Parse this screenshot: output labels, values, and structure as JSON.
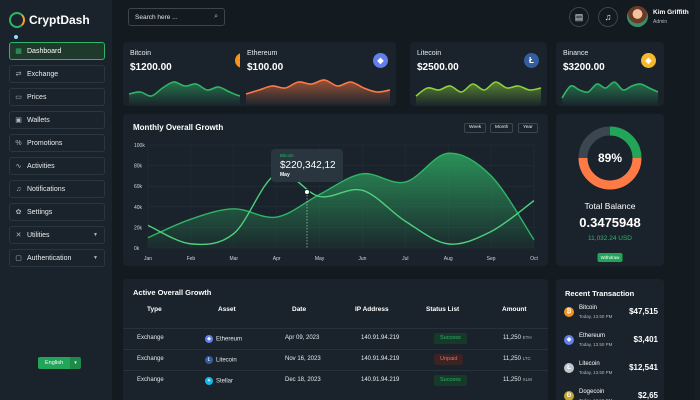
{
  "brand": {
    "name": "CryptDash"
  },
  "sidebar": {
    "items": [
      {
        "label": "Dashboard",
        "icon": "grid-icon",
        "active": true,
        "caret": false
      },
      {
        "label": "Exchange",
        "icon": "exchange-icon",
        "active": false,
        "caret": false
      },
      {
        "label": "Prices",
        "icon": "money-icon",
        "active": false,
        "caret": false
      },
      {
        "label": "Wallets",
        "icon": "wallet-icon",
        "active": false,
        "caret": false
      },
      {
        "label": "Promotions",
        "icon": "percent-icon",
        "active": false,
        "caret": false
      },
      {
        "label": "Activities",
        "icon": "activity-icon",
        "active": false,
        "caret": false
      },
      {
        "label": "Notifications",
        "icon": "bell-icon",
        "active": false,
        "caret": false
      },
      {
        "label": "Settings",
        "icon": "gear-icon",
        "active": false,
        "caret": false
      },
      {
        "label": "Utilities",
        "icon": "tools-icon",
        "active": false,
        "caret": true
      },
      {
        "label": "Authentication",
        "icon": "user-icon",
        "active": false,
        "caret": true
      }
    ],
    "language": "English"
  },
  "header": {
    "search_placeholder": "Search here ...",
    "user_name": "Kim Griffith",
    "user_role": "Admin"
  },
  "coins": [
    {
      "name": "Bitcoin",
      "price": "$1200.00",
      "color": "#f7931a",
      "glyph": "₿",
      "line": "#2fb567",
      "wave": [
        22,
        20,
        24,
        16,
        10,
        14,
        12,
        18,
        15,
        20,
        24,
        22
      ]
    },
    {
      "name": "Ethereum",
      "price": "$100.00",
      "color": "#627eea",
      "glyph": "◆",
      "line": "#ff7a45",
      "wave": [
        22,
        18,
        14,
        16,
        10,
        12,
        8,
        14,
        10,
        16,
        20,
        18
      ]
    },
    {
      "name": "Litecoin",
      "price": "$2500.00",
      "color": "#345d9d",
      "glyph": "Ł",
      "line": "#8bd13a",
      "wave": [
        24,
        16,
        18,
        14,
        20,
        12,
        18,
        10,
        16,
        14,
        18,
        16
      ]
    },
    {
      "name": "Binance",
      "price": "$3200.00",
      "color": "#f3ba2f",
      "glyph": "◈",
      "line": "#2fb567",
      "wave": [
        26,
        14,
        18,
        20,
        12,
        16,
        10,
        18,
        14,
        12,
        16,
        20
      ]
    }
  ],
  "growth": {
    "title": "Monthly Overall Growth",
    "periods": [
      "Week",
      "Month",
      "Year"
    ],
    "tooltip": {
      "series": "Bitcoin",
      "value": "$220,342,12",
      "month": "May"
    }
  },
  "chart_data": {
    "type": "area",
    "categories": [
      "Jan",
      "Feb",
      "Mar",
      "Apr",
      "May",
      "Jun",
      "Jul",
      "Aug",
      "Sep",
      "Oct"
    ],
    "ylim": [
      0,
      100000
    ],
    "yticks": [
      "0k",
      "20k",
      "40k",
      "60k",
      "80k",
      "100k"
    ],
    "series": [
      {
        "values": [
          10000,
          28000,
          38000,
          30000,
          52000,
          72000,
          64000,
          92000,
          70000,
          8000
        ],
        "color": "#2fb567",
        "fill": true
      },
      {
        "values": [
          22000,
          4000,
          14000,
          72000,
          50000,
          56000,
          26000,
          4000,
          16000,
          46000
        ],
        "color": "#4ed07e",
        "fill": false
      }
    ]
  },
  "balance": {
    "percent": "89%",
    "label": "Total Balance",
    "value": "0.3475948",
    "sub": "11,032.24 USD",
    "button": "Withdraw",
    "ring": [
      0.25,
      0.5
    ]
  },
  "active_growth": {
    "title": "Active Overall Growth",
    "columns": [
      "Type",
      "Asset",
      "Date",
      "IP Address",
      "Status List",
      "Amount"
    ],
    "rows": [
      {
        "type": "Exchange",
        "asset": "Ethereum",
        "asset_color": "#627eea",
        "glyph": "◆",
        "date": "Apr 09, 2023",
        "ip": "140.91.94.219",
        "status": "Success",
        "status_kind": "ok",
        "amount": "11,250",
        "unit": "ETH"
      },
      {
        "type": "Exchange",
        "asset": "Litecoin",
        "asset_color": "#345d9d",
        "glyph": "Ł",
        "date": "Nov 16, 2023",
        "ip": "140.91.94.219",
        "status": "Unpaid",
        "status_kind": "bad",
        "amount": "11,250",
        "unit": "LTC"
      },
      {
        "type": "Exchange",
        "asset": "Stellar",
        "asset_color": "#14b6e7",
        "glyph": "✦",
        "date": "Dec 18, 2023",
        "ip": "140.91.94.219",
        "status": "Success",
        "status_kind": "ok",
        "amount": "11,250",
        "unit": "XLM"
      }
    ]
  },
  "recent": {
    "title": "Recent Transaction",
    "items": [
      {
        "name": "Bitcoin",
        "time": "Today, 13.50 PM",
        "amount": "$47,515",
        "color": "#f7931a",
        "glyph": "₿"
      },
      {
        "name": "Ethereum",
        "time": "Today, 13.50 PM",
        "amount": "$3,401",
        "color": "#627eea",
        "glyph": "◆"
      },
      {
        "name": "Litecoin",
        "time": "Today, 13.50 PM",
        "amount": "$12,541",
        "color": "#c0c6cc",
        "glyph": "Ł"
      },
      {
        "name": "Dogecoin",
        "time": "Today, 13.50 PM",
        "amount": "$2,65",
        "color": "#c2a633",
        "glyph": "Ð"
      }
    ]
  }
}
